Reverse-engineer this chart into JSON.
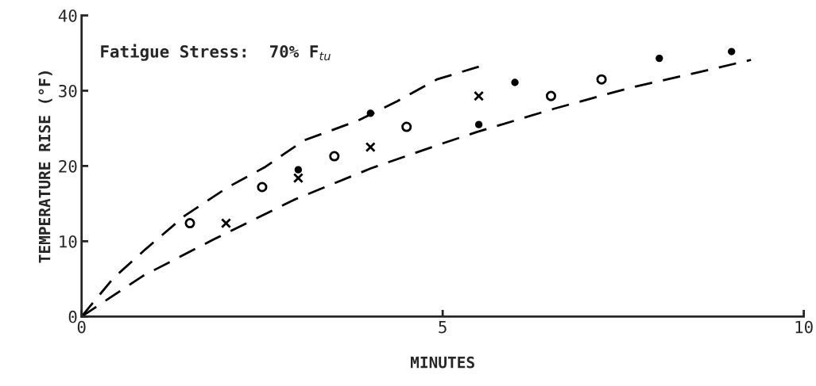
{
  "chart_data": {
    "type": "scatter",
    "xlabel": "MINUTES",
    "ylabel": "TEMPERATURE RISE (°F)",
    "annotations": [
      "Fatigue Stress:  70% F$_{tu}$"
    ],
    "xlim": [
      0,
      10
    ],
    "ylim": [
      0,
      40
    ],
    "xticks": [
      0,
      5,
      10
    ],
    "yticks": [
      0,
      10,
      20,
      30,
      40
    ],
    "grid": false,
    "legend": false,
    "series": [
      {
        "marker": "circle",
        "color": "#000000",
        "x": [
          1.5,
          2.5,
          3.5,
          4.5,
          6.5,
          7.2
        ],
        "values": [
          12.4,
          17.2,
          21.3,
          25.2,
          29.3,
          31.5
        ]
      },
      {
        "marker": "cross",
        "color": "#000000",
        "x": [
          2.0,
          3.0,
          4.0,
          5.5
        ],
        "values": [
          12.4,
          18.4,
          22.5,
          29.3
        ]
      },
      {
        "marker": "dot",
        "color": "#000000",
        "x": [
          3.0,
          4.0,
          5.5,
          6.0,
          8.0,
          9.0
        ],
        "values": [
          19.5,
          27.0,
          25.5,
          31.1,
          34.3,
          35.2
        ]
      },
      {
        "type": "line",
        "line_style": "dashed",
        "color": "#000000",
        "x": [
          0,
          0.44,
          0.88,
          1.43,
          2.03,
          2.53,
          3.08,
          3.82,
          4.37,
          4.92,
          5.5
        ],
        "values": [
          0,
          5.1,
          8.9,
          13.4,
          17.2,
          19.8,
          23.4,
          26.0,
          28.6,
          31.5,
          33.2
        ]
      },
      {
        "type": "line",
        "line_style": "dashed",
        "color": "#000000",
        "x": [
          0,
          0.85,
          1.84,
          2.94,
          4.01,
          5.03,
          5.47,
          6.54,
          7.6,
          8.7,
          9.27
        ],
        "values": [
          0,
          5.4,
          10.3,
          15.5,
          19.7,
          23.1,
          24.5,
          27.6,
          30.4,
          32.8,
          34.1
        ]
      }
    ]
  }
}
